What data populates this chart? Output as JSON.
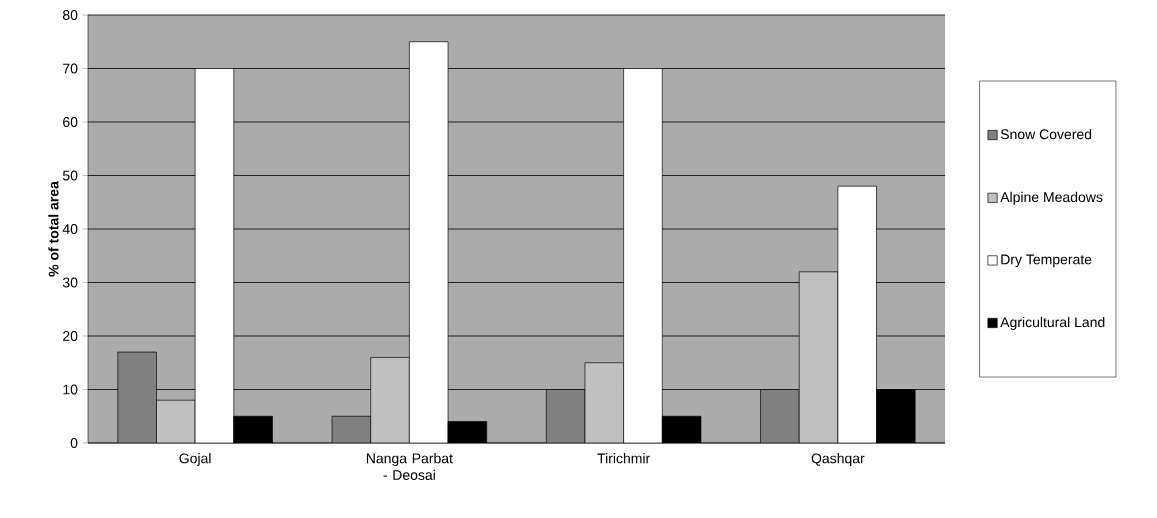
{
  "chart_data": {
    "type": "bar",
    "ylabel": "% of total area",
    "categories": [
      "Gojal",
      "Nanga Parbat - Deosai",
      "Tirichmir",
      "Qashqar"
    ],
    "series": [
      {
        "name": "Snow Covered",
        "color": "#808080",
        "values": [
          17,
          5,
          10,
          10
        ]
      },
      {
        "name": "Alpine Meadows",
        "color": "#c0c0c0",
        "values": [
          8,
          16,
          15,
          32
        ]
      },
      {
        "name": "Dry Temperate",
        "color": "#ffffff",
        "values": [
          70,
          75,
          70,
          48
        ]
      },
      {
        "name": "Agricultural Land",
        "color": "#000000",
        "values": [
          5,
          4,
          5,
          10
        ]
      }
    ],
    "ylim": [
      0,
      80
    ],
    "yticks": [
      0,
      10,
      20,
      30,
      40,
      50,
      60,
      70,
      80
    ],
    "grid": "y",
    "legend": "right"
  }
}
